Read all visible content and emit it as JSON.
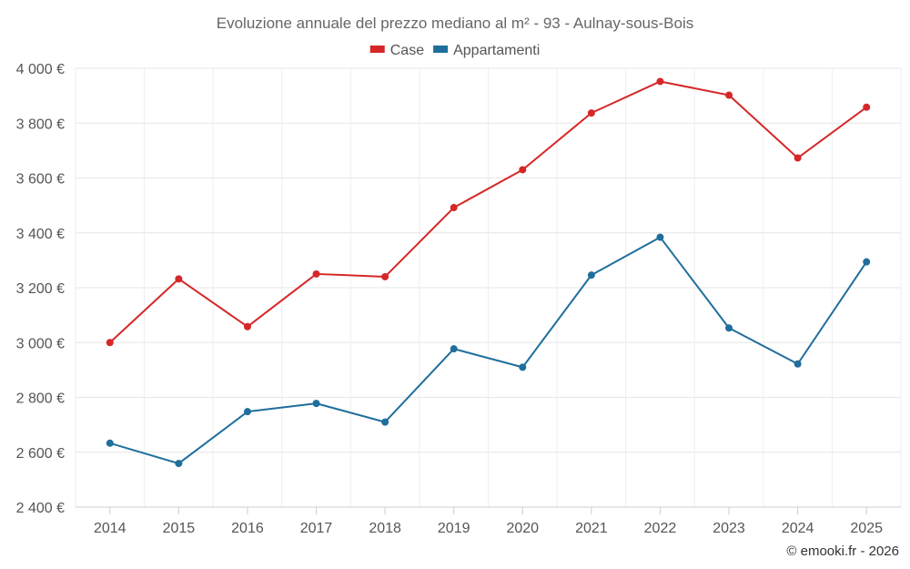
{
  "chart_data": {
    "type": "line",
    "title": "Evoluzione annuale del prezzo mediano al m² - 93 - Aulnay-sous-Bois",
    "xlabel": "",
    "ylabel": "",
    "categories": [
      "2014",
      "2015",
      "2016",
      "2017",
      "2018",
      "2019",
      "2020",
      "2021",
      "2022",
      "2023",
      "2024",
      "2025"
    ],
    "ylim": [
      2400,
      4000
    ],
    "yticks": [
      2400,
      2600,
      2800,
      3000,
      3200,
      3400,
      3600,
      3800,
      4000
    ],
    "ytick_labels": [
      "2 400 €",
      "2 600 €",
      "2 800 €",
      "3 000 €",
      "3 200 €",
      "3 400 €",
      "3 600 €",
      "3 800 €",
      "4 000 €"
    ],
    "grid": true,
    "legend_position": "top-center",
    "series": [
      {
        "name": "Case",
        "color": "#d62728",
        "values": [
          3000,
          3232,
          3058,
          3250,
          3240,
          3492,
          3630,
          3837,
          3952,
          3902,
          3673,
          3858
        ]
      },
      {
        "name": "Appartamenti",
        "color": "#1f6e9c",
        "values": [
          2633,
          2559,
          2748,
          2778,
          2710,
          2977,
          2910,
          3246,
          3384,
          3053,
          2922,
          3294
        ]
      }
    ]
  },
  "credit": "© emooki.fr - 2026"
}
